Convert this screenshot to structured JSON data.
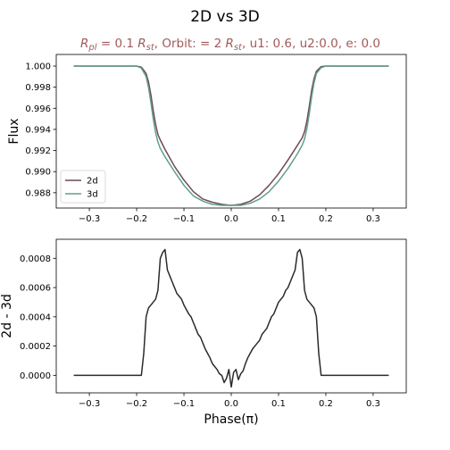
{
  "figure": {
    "title": "2D vs 3D",
    "subtitle_parts": {
      "r": "R",
      "pl": "pl",
      "eq1": " = 0.1 ",
      "r2": "R",
      "st": "st",
      "orbit": ", Orbit: = 2 ",
      "r3": "R",
      "st2": "st",
      "rest": ", u1: 0.6, u2:0.0, e: 0.0"
    },
    "subtitle_color": "#a05a5a"
  },
  "chart_data": [
    {
      "type": "line",
      "xlabel": "",
      "ylabel": "Flux",
      "xlim": [
        -0.37,
        0.37
      ],
      "ylim": [
        0.98655,
        1.0011
      ],
      "xticks": [
        -0.3,
        -0.2,
        -0.1,
        0.0,
        0.1,
        0.2,
        0.3
      ],
      "xtick_labels": [
        "−0.3",
        "−0.2",
        "−0.1",
        "0.0",
        "0.1",
        "0.2",
        "0.3"
      ],
      "yticks": [
        0.988,
        0.99,
        0.992,
        0.994,
        0.996,
        0.998,
        1.0
      ],
      "ytick_labels": [
        "0.988",
        "0.990",
        "0.992",
        "0.994",
        "0.996",
        "0.998",
        "1.000"
      ],
      "legend": "lower-left",
      "series": [
        {
          "name": "2d",
          "color": "#6e4a52",
          "x": [
            -0.333,
            -0.25,
            -0.2,
            -0.19,
            -0.18,
            -0.175,
            -0.17,
            -0.165,
            -0.16,
            -0.155,
            -0.15,
            -0.14,
            -0.12,
            -0.1,
            -0.08,
            -0.06,
            -0.04,
            -0.02,
            0.0,
            0.02,
            0.04,
            0.06,
            0.08,
            0.1,
            0.12,
            0.14,
            0.15,
            0.155,
            0.16,
            0.165,
            0.17,
            0.175,
            0.18,
            0.19,
            0.2,
            0.25,
            0.333
          ],
          "y": [
            1.0,
            1.0,
            1.0,
            0.9999,
            0.9993,
            0.9985,
            0.9973,
            0.9958,
            0.9945,
            0.9935,
            0.993,
            0.9921,
            0.9905,
            0.9892,
            0.9881,
            0.9874,
            0.9871,
            0.9869,
            0.9868,
            0.9869,
            0.9872,
            0.9878,
            0.9887,
            0.9898,
            0.9911,
            0.9925,
            0.9932,
            0.9938,
            0.9948,
            0.9962,
            0.9977,
            0.9988,
            0.9995,
            0.99995,
            1.0,
            1.0,
            1.0
          ]
        },
        {
          "name": "3d",
          "color": "#5fa08a",
          "x": [
            -0.333,
            -0.25,
            -0.2,
            -0.19,
            -0.18,
            -0.175,
            -0.17,
            -0.165,
            -0.16,
            -0.155,
            -0.15,
            -0.14,
            -0.12,
            -0.1,
            -0.08,
            -0.06,
            -0.04,
            -0.02,
            0.0,
            0.02,
            0.04,
            0.06,
            0.08,
            0.1,
            0.12,
            0.14,
            0.15,
            0.155,
            0.16,
            0.165,
            0.17,
            0.175,
            0.18,
            0.19,
            0.2,
            0.25,
            0.333
          ],
          "y": [
            1.0,
            1.0,
            1.0,
            0.9998,
            0.999,
            0.998,
            0.9966,
            0.995,
            0.9937,
            0.9928,
            0.9922,
            0.9914,
            0.99,
            0.9887,
            0.9877,
            0.9872,
            0.9869,
            0.9868,
            0.9868,
            0.9868,
            0.987,
            0.9874,
            0.9881,
            0.9891,
            0.9903,
            0.9917,
            0.9925,
            0.9931,
            0.9941,
            0.9955,
            0.9971,
            0.9984,
            0.9993,
            0.99985,
            1.0,
            1.0,
            1.0
          ]
        }
      ]
    },
    {
      "type": "line",
      "xlabel": "Phase(π)",
      "ylabel": "2d - 3d",
      "xlim": [
        -0.37,
        0.37
      ],
      "ylim": [
        -0.00012,
        0.00093
      ],
      "xticks": [
        -0.3,
        -0.2,
        -0.1,
        0.0,
        0.1,
        0.2,
        0.3
      ],
      "xtick_labels": [
        "−0.3",
        "−0.2",
        "−0.1",
        "0.0",
        "0.1",
        "0.2",
        "0.3"
      ],
      "yticks": [
        0.0,
        0.0002,
        0.0004,
        0.0006,
        0.0008
      ],
      "ytick_labels": [
        "0.0000",
        "0.0002",
        "0.0004",
        "0.0006",
        "0.0008"
      ],
      "series": [
        {
          "name": "",
          "color": "#2b2b2b",
          "x": [
            -0.333,
            -0.25,
            -0.19,
            -0.185,
            -0.18,
            -0.175,
            -0.17,
            -0.165,
            -0.16,
            -0.155,
            -0.15,
            -0.145,
            -0.14,
            -0.135,
            -0.13,
            -0.125,
            -0.12,
            -0.115,
            -0.11,
            -0.105,
            -0.1,
            -0.095,
            -0.09,
            -0.085,
            -0.08,
            -0.075,
            -0.07,
            -0.065,
            -0.06,
            -0.055,
            -0.05,
            -0.045,
            -0.04,
            -0.035,
            -0.03,
            -0.025,
            -0.02,
            -0.015,
            -0.01,
            -0.005,
            0.0,
            0.005,
            0.01,
            0.015,
            0.02,
            0.025,
            0.03,
            0.035,
            0.04,
            0.045,
            0.05,
            0.055,
            0.06,
            0.065,
            0.07,
            0.075,
            0.08,
            0.085,
            0.09,
            0.095,
            0.1,
            0.105,
            0.11,
            0.115,
            0.12,
            0.125,
            0.13,
            0.135,
            0.14,
            0.145,
            0.15,
            0.155,
            0.16,
            0.165,
            0.17,
            0.175,
            0.18,
            0.185,
            0.19,
            0.25,
            0.333
          ],
          "y": [
            0.0,
            0.0,
            0.0,
            0.00015,
            0.0004,
            0.00046,
            0.00048,
            0.0005,
            0.00052,
            0.00058,
            0.0008,
            0.00084,
            0.00086,
            0.00072,
            0.00068,
            0.00064,
            0.0006,
            0.00056,
            0.00054,
            0.00052,
            0.00048,
            0.00045,
            0.00042,
            0.0004,
            0.00036,
            0.00032,
            0.00028,
            0.00026,
            0.00022,
            0.00018,
            0.00015,
            0.00012,
            8e-05,
            6e-05,
            4e-05,
            1e-05,
            0.0,
            -5e-05,
            -2e-05,
            4e-05,
            -8e-05,
            2e-05,
            4e-05,
            -3e-05,
            1e-05,
            3e-05,
            8e-05,
            0.00012,
            0.00015,
            0.00018,
            0.0002,
            0.00022,
            0.00024,
            0.00028,
            0.0003,
            0.00032,
            0.00036,
            0.0004,
            0.00042,
            0.00046,
            0.0005,
            0.00052,
            0.00054,
            0.00058,
            0.0006,
            0.00064,
            0.00068,
            0.00072,
            0.00084,
            0.00086,
            0.0008,
            0.00058,
            0.00052,
            0.0005,
            0.00048,
            0.00046,
            0.0004,
            0.00015,
            0.0,
            0.0,
            0.0
          ]
        }
      ]
    }
  ]
}
